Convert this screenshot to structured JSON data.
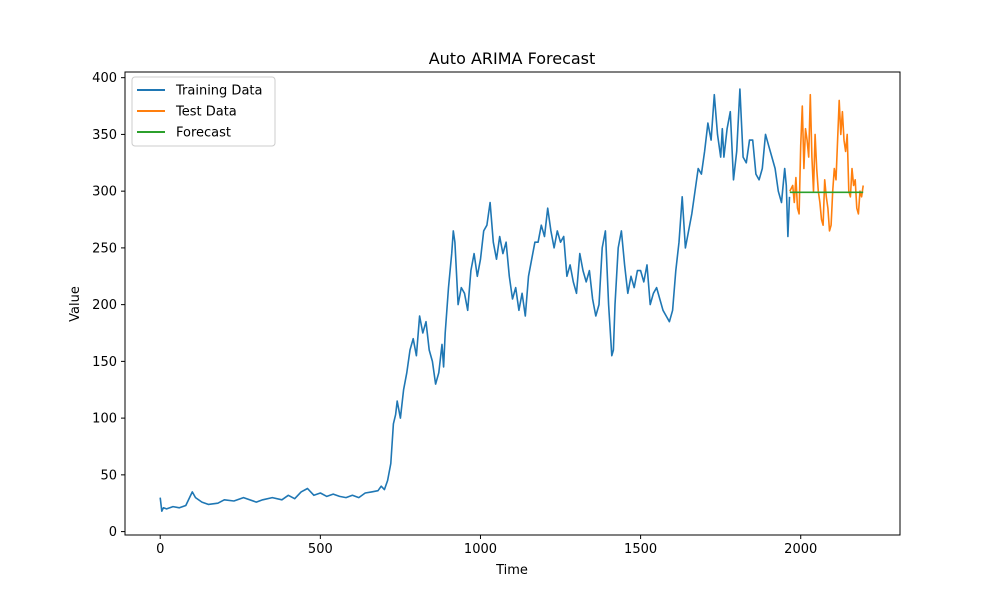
{
  "chart_data": {
    "type": "line",
    "title": "Auto ARIMA Forecast",
    "xlabel": "Time",
    "ylabel": "Value",
    "xlim": [
      -110,
      2310
    ],
    "ylim": [
      -3,
      405
    ],
    "xticks": [
      0,
      500,
      1000,
      1500,
      2000
    ],
    "yticks": [
      0,
      50,
      100,
      150,
      200,
      250,
      300,
      350,
      400
    ],
    "grid": false,
    "legend": "top-left",
    "series": [
      {
        "name": "Training Data",
        "color": "#1f77b4",
        "x": [
          0,
          5,
          10,
          20,
          40,
          60,
          80,
          100,
          110,
          130,
          150,
          180,
          200,
          230,
          260,
          300,
          320,
          350,
          380,
          400,
          420,
          440,
          460,
          480,
          500,
          520,
          540,
          560,
          580,
          600,
          620,
          640,
          660,
          680,
          690,
          700,
          710,
          720,
          728,
          735,
          740,
          750,
          760,
          770,
          780,
          790,
          800,
          810,
          820,
          830,
          840,
          850,
          860,
          870,
          880,
          885,
          890,
          900,
          910,
          915,
          920,
          930,
          940,
          950,
          960,
          970,
          980,
          990,
          1000,
          1010,
          1020,
          1030,
          1040,
          1050,
          1060,
          1070,
          1080,
          1090,
          1100,
          1110,
          1120,
          1130,
          1140,
          1150,
          1160,
          1170,
          1180,
          1190,
          1200,
          1210,
          1220,
          1230,
          1240,
          1250,
          1260,
          1270,
          1280,
          1290,
          1300,
          1310,
          1320,
          1330,
          1340,
          1350,
          1360,
          1370,
          1380,
          1390,
          1400,
          1410,
          1415,
          1420,
          1430,
          1440,
          1450,
          1460,
          1470,
          1480,
          1490,
          1500,
          1510,
          1520,
          1530,
          1540,
          1550,
          1560,
          1570,
          1580,
          1590,
          1600,
          1610,
          1620,
          1630,
          1640,
          1650,
          1660,
          1670,
          1680,
          1690,
          1700,
          1710,
          1720,
          1730,
          1740,
          1750,
          1755,
          1760,
          1770,
          1780,
          1790,
          1800,
          1810,
          1815,
          1820,
          1830,
          1840,
          1850,
          1860,
          1870,
          1880,
          1890,
          1900,
          1910,
          1920,
          1930,
          1940,
          1950,
          1955,
          1960,
          1965
        ],
        "y": [
          30,
          18,
          21,
          20,
          22,
          21,
          23,
          35,
          30,
          26,
          24,
          25,
          28,
          27,
          30,
          26,
          28,
          30,
          28,
          32,
          29,
          35,
          38,
          32,
          34,
          31,
          33,
          31,
          30,
          32,
          30,
          34,
          35,
          36,
          40,
          37,
          45,
          60,
          95,
          103,
          115,
          100,
          125,
          140,
          160,
          170,
          155,
          190,
          175,
          185,
          160,
          150,
          130,
          140,
          165,
          145,
          175,
          215,
          245,
          265,
          255,
          200,
          215,
          210,
          195,
          230,
          245,
          225,
          240,
          265,
          270,
          290,
          255,
          240,
          260,
          245,
          255,
          225,
          205,
          215,
          195,
          210,
          190,
          225,
          240,
          255,
          255,
          270,
          260,
          285,
          265,
          250,
          265,
          255,
          260,
          225,
          235,
          220,
          210,
          245,
          230,
          220,
          230,
          205,
          190,
          200,
          250,
          265,
          200,
          155,
          160,
          200,
          250,
          265,
          235,
          210,
          225,
          215,
          230,
          230,
          220,
          235,
          200,
          210,
          215,
          205,
          195,
          190,
          185,
          195,
          230,
          255,
          295,
          250,
          265,
          280,
          300,
          320,
          315,
          335,
          360,
          345,
          385,
          350,
          330,
          355,
          330,
          355,
          370,
          310,
          335,
          390,
          360,
          330,
          325,
          345,
          345,
          315,
          310,
          320,
          350,
          340,
          330,
          320,
          300,
          290,
          320,
          305,
          260,
          295
        ]
      },
      {
        "name": "Test Data",
        "color": "#ff7f0e",
        "x": [
          1966,
          1975,
          1980,
          1985,
          1990,
          1995,
          2000,
          2005,
          2010,
          2015,
          2020,
          2025,
          2030,
          2035,
          2040,
          2045,
          2050,
          2055,
          2060,
          2065,
          2070,
          2075,
          2080,
          2085,
          2090,
          2095,
          2100,
          2105,
          2110,
          2115,
          2120,
          2125,
          2130,
          2135,
          2140,
          2145,
          2150,
          2155,
          2160,
          2165,
          2170,
          2175,
          2180,
          2185,
          2190,
          2195
        ],
        "y": [
          300,
          305,
          290,
          312,
          285,
          280,
          340,
          375,
          320,
          355,
          345,
          330,
          385,
          330,
          300,
          350,
          320,
          300,
          290,
          275,
          270,
          310,
          295,
          285,
          265,
          270,
          300,
          320,
          310,
          345,
          380,
          350,
          370,
          345,
          335,
          350,
          300,
          295,
          320,
          305,
          310,
          285,
          280,
          300,
          295,
          305
        ]
      },
      {
        "name": "Forecast",
        "color": "#2ca02c",
        "x": [
          1966,
          2195
        ],
        "y": [
          299,
          299
        ]
      }
    ]
  }
}
